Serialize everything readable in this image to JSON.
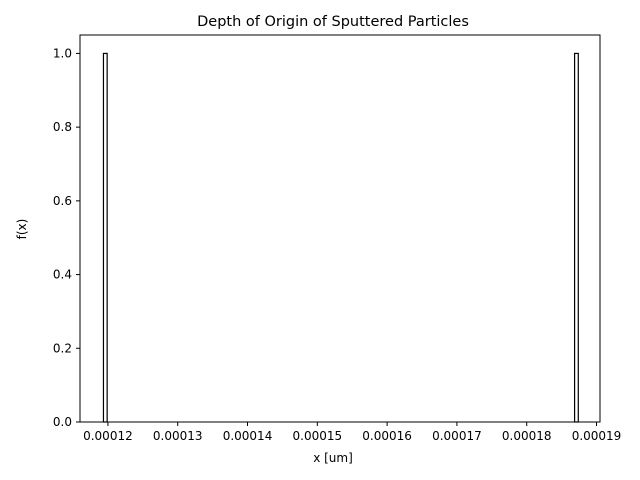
{
  "chart_data": {
    "type": "bar",
    "title": "Depth of Origin of Sputtered Particles",
    "xlabel": "x [um]",
    "ylabel": "f(x)",
    "xlim": [
      0.000116,
      0.0001905
    ],
    "ylim": [
      0,
      1.05
    ],
    "x_ticks": [
      0.00012,
      0.00013,
      0.00014,
      0.00015,
      0.00016,
      0.00017,
      0.00018,
      0.00019
    ],
    "x_tick_labels": [
      "0.00012",
      "0.00013",
      "0.00014",
      "0.00015",
      "0.00016",
      "0.00017",
      "0.00018",
      "0.00019"
    ],
    "y_ticks": [
      0.0,
      0.2,
      0.4,
      0.6,
      0.8,
      1.0
    ],
    "y_tick_labels": [
      "0.0",
      "0.2",
      "0.4",
      "0.6",
      "0.8",
      "1.0"
    ],
    "grid": false,
    "legend": "none",
    "series": [
      {
        "bins": [
          {
            "x0": 0.00011936,
            "x1": 0.00011989,
            "value": 1.0
          },
          {
            "x0": 0.00018686,
            "x1": 0.00018739,
            "value": 1.0
          }
        ],
        "edge_color": "#000000",
        "fill_color": "#ffffff"
      }
    ]
  }
}
